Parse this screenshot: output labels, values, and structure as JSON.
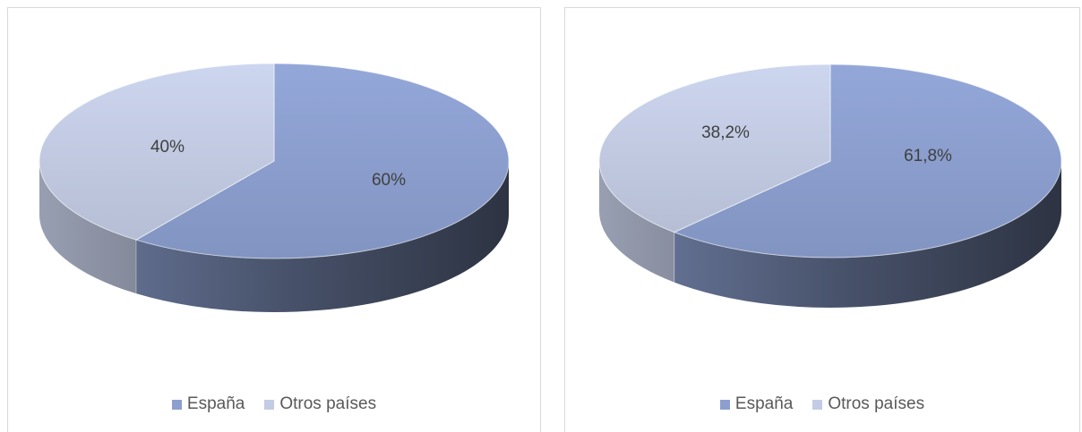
{
  "chart_data": [
    {
      "type": "pie",
      "categories": [
        "España",
        "Otros países"
      ],
      "values": [
        60,
        40
      ],
      "data_labels": [
        "60%",
        "40%"
      ],
      "colors": [
        "#8c9fcf",
        "#c3cce4"
      ],
      "legend_position": "bottom"
    },
    {
      "type": "pie",
      "categories": [
        "España",
        "Otros países"
      ],
      "values": [
        61.8,
        38.2
      ],
      "data_labels": [
        "61,8%",
        "38,2%"
      ],
      "colors": [
        "#8c9fcf",
        "#c3cce4"
      ],
      "legend_position": "bottom"
    }
  ]
}
